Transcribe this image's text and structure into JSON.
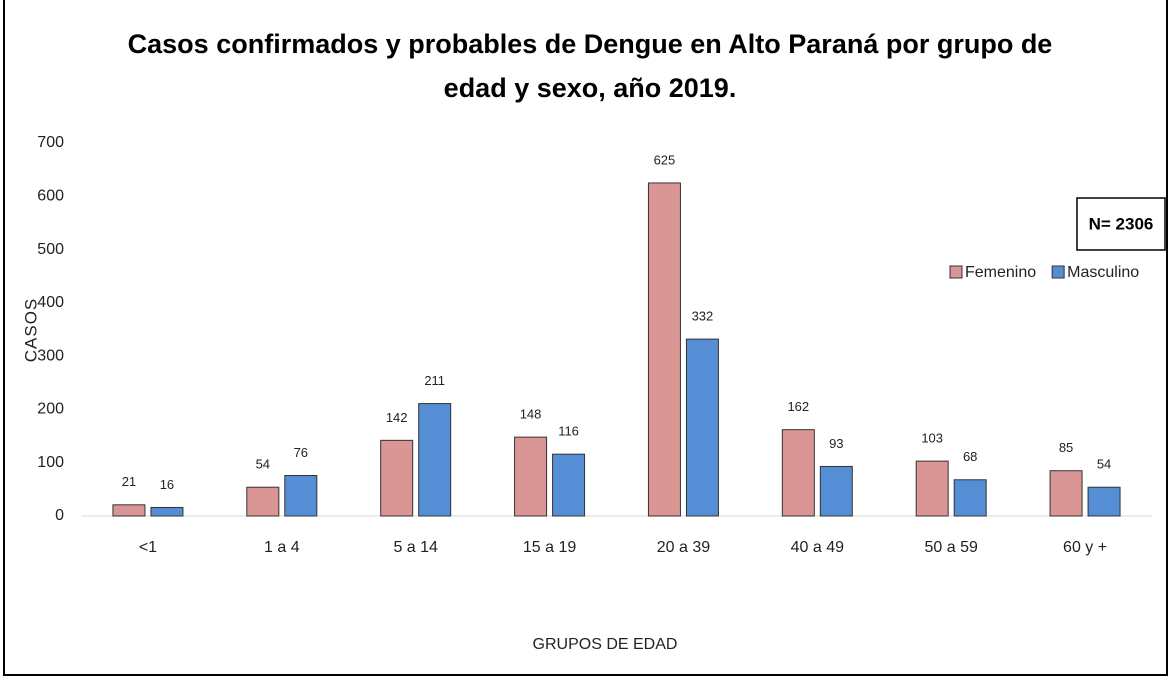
{
  "chart_data": {
    "type": "bar",
    "title": "Casos confirmados y probables de Dengue en Alto Paraná por grupo de edad y sexo, año 2019.",
    "x_label": "GRUPOS DE EDAD",
    "y_label": "CASOS",
    "annotation": "N= 2306",
    "categories": [
      "<1",
      "1 a 4",
      "5 a 14",
      "15 a 19",
      "20 a 39",
      "40 a 49",
      "50 a 59",
      "60 y +"
    ],
    "series": [
      {
        "name": "Femenino",
        "color": "#da9694",
        "values": [
          21,
          54,
          142,
          148,
          625,
          162,
          103,
          85
        ]
      },
      {
        "name": "Masculino",
        "color": "#558ed5",
        "values": [
          16,
          76,
          211,
          116,
          332,
          93,
          68,
          54
        ]
      }
    ],
    "ylim": [
      0,
      700
    ],
    "yticks": [
      0,
      100,
      200,
      300,
      400,
      500,
      600,
      700
    ],
    "legend": "upper right"
  }
}
